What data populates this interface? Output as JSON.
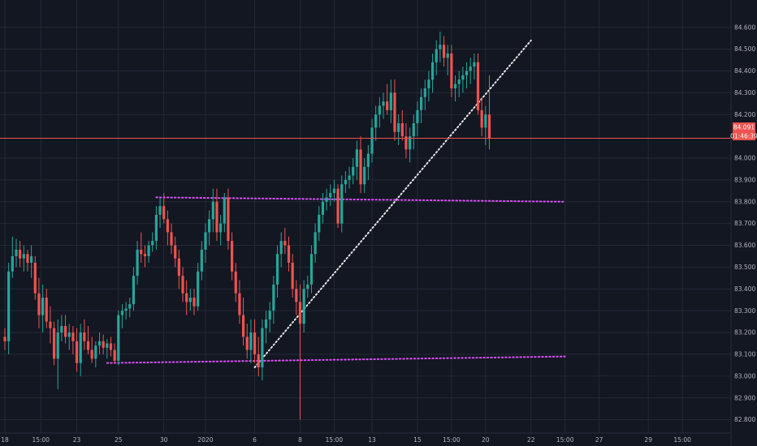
{
  "chart_data": {
    "type": "candlestick",
    "ylim": [
      82.75,
      84.62
    ],
    "y_ticks": [
      "82.800",
      "82.900",
      "83.000",
      "83.100",
      "83.200",
      "83.300",
      "83.400",
      "83.500",
      "83.600",
      "83.700",
      "83.800",
      "83.900",
      "84.000",
      "84.200",
      "84.300",
      "84.400",
      "84.500",
      "84.600"
    ],
    "y_tick_values": [
      82.8,
      82.9,
      83.0,
      83.1,
      83.2,
      83.3,
      83.4,
      83.5,
      83.6,
      83.7,
      83.8,
      83.9,
      84.0,
      84.2,
      84.3,
      84.4,
      84.5,
      84.6
    ],
    "x_ticks": [
      {
        "label": "18",
        "i": 0
      },
      {
        "label": "15:00",
        "i": 9.5
      },
      {
        "label": "23",
        "i": 19
      },
      {
        "label": "25",
        "i": 30
      },
      {
        "label": "30",
        "i": 42
      },
      {
        "label": "2020",
        "i": 53
      },
      {
        "label": "6",
        "i": 66
      },
      {
        "label": "8",
        "i": 78
      },
      {
        "label": "15:00",
        "i": 87
      },
      {
        "label": "13",
        "i": 97
      },
      {
        "label": "15",
        "i": 109
      },
      {
        "label": "15:00",
        "i": 118
      },
      {
        "label": "20",
        "i": 127
      },
      {
        "label": "22",
        "i": 139
      },
      {
        "label": "15:00",
        "i": 148
      },
      {
        "label": "27",
        "i": 157
      },
      {
        "label": "29",
        "i": 170
      },
      {
        "label": "15:00",
        "i": 179
      }
    ],
    "candles": [
      [
        83.18,
        83.22,
        83.12,
        83.16
      ],
      [
        83.16,
        83.52,
        83.1,
        83.48
      ],
      [
        83.48,
        83.64,
        83.45,
        83.55
      ],
      [
        83.55,
        83.63,
        83.5,
        83.58
      ],
      [
        83.58,
        83.62,
        83.5,
        83.54
      ],
      [
        83.54,
        83.6,
        83.48,
        83.56
      ],
      [
        83.56,
        83.58,
        83.48,
        83.52
      ],
      [
        83.52,
        83.6,
        83.45,
        83.55
      ],
      [
        83.52,
        83.55,
        83.35,
        83.38
      ],
      [
        83.38,
        83.45,
        83.22,
        83.28
      ],
      [
        83.28,
        83.42,
        83.2,
        83.36
      ],
      [
        83.36,
        83.4,
        83.22,
        83.25
      ],
      [
        83.25,
        83.32,
        83.15,
        83.22
      ],
      [
        83.22,
        83.25,
        83.05,
        83.08
      ],
      [
        83.08,
        83.26,
        82.94,
        83.2
      ],
      [
        83.2,
        83.28,
        83.16,
        83.23
      ],
      [
        83.23,
        83.28,
        83.15,
        83.18
      ],
      [
        83.18,
        83.24,
        83.12,
        83.2
      ],
      [
        83.2,
        83.23,
        83.1,
        83.16
      ],
      [
        83.16,
        83.22,
        83.02,
        83.06
      ],
      [
        83.06,
        83.24,
        83.0,
        83.2
      ],
      [
        83.2,
        83.26,
        83.12,
        83.16
      ],
      [
        83.16,
        83.23,
        83.1,
        83.12
      ],
      [
        83.12,
        83.18,
        83.06,
        83.08
      ],
      [
        83.08,
        83.16,
        83.04,
        83.14
      ],
      [
        83.14,
        83.2,
        83.1,
        83.16
      ],
      [
        83.16,
        83.19,
        83.1,
        83.13
      ],
      [
        83.13,
        83.17,
        83.08,
        83.15
      ],
      [
        83.15,
        83.18,
        83.09,
        83.12
      ],
      [
        83.12,
        83.15,
        83.06,
        83.07
      ],
      [
        83.07,
        83.3,
        83.05,
        83.28
      ],
      [
        83.28,
        83.33,
        83.22,
        83.3
      ],
      [
        83.3,
        83.34,
        83.26,
        83.31
      ],
      [
        83.31,
        83.36,
        83.27,
        83.33
      ],
      [
        83.33,
        83.5,
        83.3,
        83.46
      ],
      [
        83.46,
        83.62,
        83.42,
        83.58
      ],
      [
        83.58,
        83.66,
        83.52,
        83.56
      ],
      [
        83.56,
        83.6,
        83.5,
        83.55
      ],
      [
        83.55,
        83.62,
        83.52,
        83.6
      ],
      [
        83.6,
        83.66,
        83.57,
        83.62
      ],
      [
        83.62,
        83.78,
        83.58,
        83.74
      ],
      [
        83.74,
        83.82,
        83.68,
        83.78
      ],
      [
        83.78,
        83.84,
        83.7,
        83.72
      ],
      [
        83.72,
        83.76,
        83.6,
        83.66
      ],
      [
        83.66,
        83.7,
        83.56,
        83.6
      ],
      [
        83.6,
        83.64,
        83.5,
        83.54
      ],
      [
        83.54,
        83.58,
        83.4,
        83.46
      ],
      [
        83.46,
        83.5,
        83.34,
        83.38
      ],
      [
        83.38,
        83.44,
        83.28,
        83.34
      ],
      [
        83.34,
        83.4,
        83.3,
        83.36
      ],
      [
        83.36,
        83.4,
        83.28,
        83.32
      ],
      [
        83.32,
        83.52,
        83.3,
        83.48
      ],
      [
        83.48,
        83.62,
        83.44,
        83.58
      ],
      [
        83.58,
        83.7,
        83.52,
        83.66
      ],
      [
        83.66,
        83.76,
        83.6,
        83.72
      ],
      [
        83.72,
        83.86,
        83.66,
        83.8
      ],
      [
        83.8,
        83.86,
        83.62,
        83.66
      ],
      [
        83.66,
        83.74,
        83.6,
        83.7
      ],
      [
        83.7,
        83.84,
        83.66,
        83.82
      ],
      [
        83.82,
        83.86,
        83.58,
        83.62
      ],
      [
        83.62,
        83.66,
        83.44,
        83.48
      ],
      [
        83.48,
        83.52,
        83.34,
        83.38
      ],
      [
        83.38,
        83.44,
        83.24,
        83.28
      ],
      [
        83.28,
        83.36,
        83.14,
        83.18
      ],
      [
        83.18,
        83.24,
        83.08,
        83.12
      ],
      [
        83.12,
        83.26,
        83.06,
        83.2
      ],
      [
        83.2,
        83.26,
        83.06,
        83.1
      ],
      [
        83.1,
        83.18,
        83.0,
        83.04
      ],
      [
        83.04,
        83.26,
        82.98,
        83.22
      ],
      [
        83.22,
        83.3,
        83.15,
        83.26
      ],
      [
        83.26,
        83.34,
        83.2,
        83.3
      ],
      [
        83.3,
        83.46,
        83.24,
        83.42
      ],
      [
        83.42,
        83.6,
        83.36,
        83.56
      ],
      [
        83.56,
        83.66,
        83.5,
        83.62
      ],
      [
        83.62,
        83.68,
        83.56,
        83.6
      ],
      [
        83.6,
        83.64,
        83.48,
        83.52
      ],
      [
        83.52,
        83.56,
        83.36,
        83.4
      ],
      [
        83.4,
        83.44,
        83.28,
        83.34
      ],
      [
        83.34,
        83.42,
        82.8,
        83.24
      ],
      [
        83.24,
        83.44,
        83.2,
        83.4
      ],
      [
        83.4,
        83.46,
        83.36,
        83.42
      ],
      [
        83.42,
        83.6,
        83.38,
        83.56
      ],
      [
        83.56,
        83.7,
        83.52,
        83.66
      ],
      [
        83.66,
        83.78,
        83.62,
        83.74
      ],
      [
        83.74,
        83.84,
        83.7,
        83.8
      ],
      [
        83.8,
        83.86,
        83.76,
        83.82
      ],
      [
        83.82,
        83.88,
        83.78,
        83.84
      ],
      [
        83.84,
        83.9,
        83.8,
        83.86
      ],
      [
        83.86,
        83.88,
        83.68,
        83.7
      ],
      [
        83.7,
        83.92,
        83.66,
        83.88
      ],
      [
        83.88,
        83.94,
        83.84,
        83.9
      ],
      [
        83.9,
        83.96,
        83.86,
        83.92
      ],
      [
        83.92,
        84.0,
        83.88,
        83.96
      ],
      [
        83.96,
        84.08,
        83.9,
        84.04
      ],
      [
        84.04,
        84.1,
        83.84,
        83.88
      ],
      [
        83.88,
        84.0,
        83.84,
        83.96
      ],
      [
        83.96,
        84.06,
        83.9,
        84.02
      ],
      [
        84.02,
        84.18,
        83.98,
        84.14
      ],
      [
        84.14,
        84.24,
        84.08,
        84.2
      ],
      [
        84.2,
        84.28,
        84.14,
        84.24
      ],
      [
        84.24,
        84.3,
        84.18,
        84.26
      ],
      [
        84.26,
        84.34,
        84.2,
        84.22
      ],
      [
        84.22,
        84.36,
        84.16,
        84.3
      ],
      [
        84.3,
        84.36,
        84.08,
        84.12
      ],
      [
        84.12,
        84.2,
        84.06,
        84.16
      ],
      [
        84.16,
        84.22,
        84.08,
        84.1
      ],
      [
        84.1,
        84.16,
        84.0,
        84.04
      ],
      [
        84.04,
        84.14,
        83.98,
        84.1
      ],
      [
        84.1,
        84.2,
        84.04,
        84.16
      ],
      [
        84.16,
        84.26,
        84.1,
        84.22
      ],
      [
        84.22,
        84.32,
        84.16,
        84.28
      ],
      [
        84.28,
        84.36,
        84.22,
        84.32
      ],
      [
        84.32,
        84.4,
        84.26,
        84.36
      ],
      [
        84.36,
        84.48,
        84.3,
        84.44
      ],
      [
        84.44,
        84.54,
        84.38,
        84.5
      ],
      [
        84.5,
        84.58,
        84.44,
        84.52
      ],
      [
        84.52,
        84.56,
        84.42,
        84.46
      ],
      [
        84.46,
        84.52,
        84.38,
        84.48
      ],
      [
        84.48,
        84.52,
        84.28,
        84.32
      ],
      [
        84.32,
        84.38,
        84.26,
        84.34
      ],
      [
        84.34,
        84.4,
        84.28,
        84.36
      ],
      [
        84.36,
        84.42,
        84.3,
        84.38
      ],
      [
        84.38,
        84.44,
        84.32,
        84.4
      ],
      [
        84.4,
        84.46,
        84.34,
        84.42
      ],
      [
        84.42,
        84.48,
        84.36,
        84.44
      ],
      [
        84.44,
        84.48,
        84.2,
        84.22
      ],
      [
        84.22,
        84.28,
        84.1,
        84.14
      ],
      [
        84.14,
        84.24,
        84.06,
        84.2
      ],
      [
        84.2,
        84.38,
        84.04,
        84.09
      ]
    ],
    "lines": [
      {
        "style": "dotted",
        "color": "#e6e6e6",
        "from": [
          66,
          83.04
        ],
        "to": [
          139,
          84.54
        ]
      },
      {
        "style": "dotted",
        "color": "#d94ff5",
        "from": [
          40,
          83.82
        ],
        "to": [
          148,
          83.8
        ]
      },
      {
        "style": "dotted",
        "color": "#d94ff5",
        "from": [
          27,
          83.06
        ],
        "to": [
          148,
          83.09
        ]
      }
    ],
    "price_line": 84.091,
    "last_price_label": "84.091",
    "countdown_label": "01:46:39"
  },
  "colors": {
    "background": "#131722",
    "grid": "#242836",
    "up": "#26a69a",
    "down": "#ef5350",
    "axis_text": "#b2b5be",
    "price_line": "#ef5350",
    "trendline": "#e6e6e6",
    "level": "#d94ff5"
  }
}
